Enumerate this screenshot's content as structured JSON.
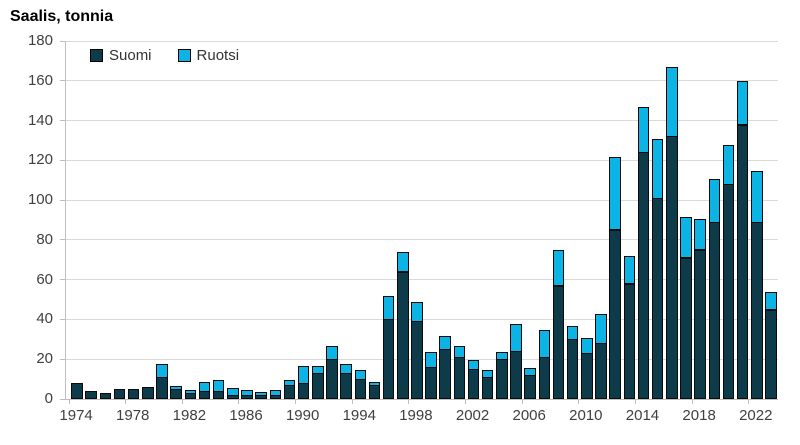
{
  "title": "Saalis, tonnia",
  "colors": {
    "suomi": "#0e3b49",
    "ruotsi": "#0cb4e6",
    "bar_outline": "#0a0a0a",
    "gridline": "#d9d9d9",
    "axis_line": "#bfbfbf",
    "tick_label": "#404040",
    "title_text": "#000000"
  },
  "legend": {
    "items": [
      {
        "label": "Suomi",
        "color": "#0e3b49"
      },
      {
        "label": "Ruotsi",
        "color": "#0cb4e6"
      }
    ]
  },
  "chart_data": {
    "type": "bar",
    "stacked": true,
    "title": "Saalis, tonnia",
    "xlabel": "",
    "ylabel": "Saalis, tonnia",
    "ylim": [
      0,
      180
    ],
    "ytick_step": 20,
    "grid": true,
    "legend_position": "top-left-inside",
    "categories": [
      1974,
      1975,
      1976,
      1977,
      1978,
      1979,
      1980,
      1981,
      1982,
      1983,
      1984,
      1985,
      1986,
      1987,
      1988,
      1989,
      1990,
      1991,
      1992,
      1993,
      1994,
      1995,
      1996,
      1997,
      1998,
      1999,
      2000,
      2001,
      2002,
      2003,
      2004,
      2005,
      2006,
      2007,
      2008,
      2009,
      2010,
      2011,
      2012,
      2013,
      2014,
      2015,
      2016,
      2017,
      2018,
      2019,
      2020,
      2021,
      2022,
      2023
    ],
    "xticks": [
      1974,
      1978,
      1982,
      1986,
      1990,
      1994,
      1998,
      2002,
      2006,
      2010,
      2014,
      2018,
      2022
    ],
    "series": [
      {
        "name": "Suomi",
        "color": "#0e3b49",
        "values": [
          8,
          4,
          3,
          5,
          5,
          6,
          11,
          5,
          3,
          4,
          4,
          2,
          2,
          2,
          2,
          7,
          8,
          13,
          20,
          13,
          10,
          7,
          40,
          64,
          39,
          16,
          25,
          21,
          15,
          11,
          20,
          24,
          12,
          21,
          57,
          30,
          23,
          28,
          85,
          58,
          124,
          101,
          132,
          71,
          75,
          89,
          108,
          138,
          89,
          45
        ]
      },
      {
        "name": "Ruotsi",
        "color": "#0cb4e6",
        "values": [
          0,
          0,
          0,
          0,
          0,
          0,
          7,
          2,
          2,
          5,
          6,
          4,
          3,
          2,
          3,
          3,
          9,
          4,
          7,
          5,
          5,
          2,
          12,
          10,
          10,
          8,
          7,
          6,
          5,
          4,
          4,
          14,
          4,
          14,
          18,
          7,
          8,
          15,
          37,
          14,
          23,
          30,
          35,
          21,
          16,
          22,
          20,
          22,
          26,
          9
        ]
      }
    ]
  }
}
